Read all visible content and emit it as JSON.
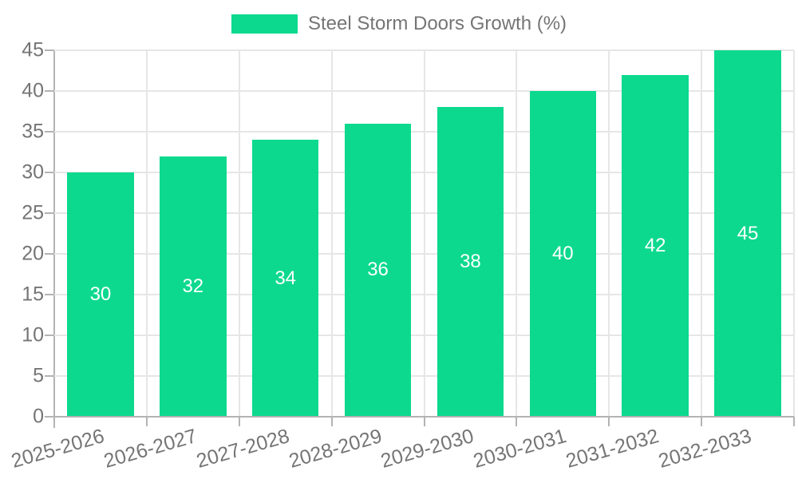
{
  "chart_data": {
    "type": "bar",
    "title": "",
    "categories": [
      "2025-2026",
      "2026-2027",
      "2027-2028",
      "2028-2029",
      "2029-2030",
      "2030-2031",
      "2031-2032",
      "2032-2033"
    ],
    "series": [
      {
        "name": "Steel Storm Doors Growth (%)",
        "values": [
          30,
          32,
          34,
          36,
          38,
          40,
          42,
          45
        ]
      }
    ],
    "value_labels": [
      "30",
      "32",
      "34",
      "36",
      "38",
      "40",
      "42",
      "45"
    ],
    "xlabel": "",
    "ylabel": "",
    "ylim": [
      0,
      45
    ],
    "yticks": [
      0,
      5,
      10,
      15,
      20,
      25,
      30,
      35,
      40,
      45
    ],
    "grid": true,
    "legend_position": "top"
  },
  "colors": {
    "bar": "#0cd98e",
    "grid": "#e6e6e6",
    "axis": "#b3b3b3",
    "text": "#757575",
    "value_label": "#ffffff",
    "background": "#ffffff"
  }
}
